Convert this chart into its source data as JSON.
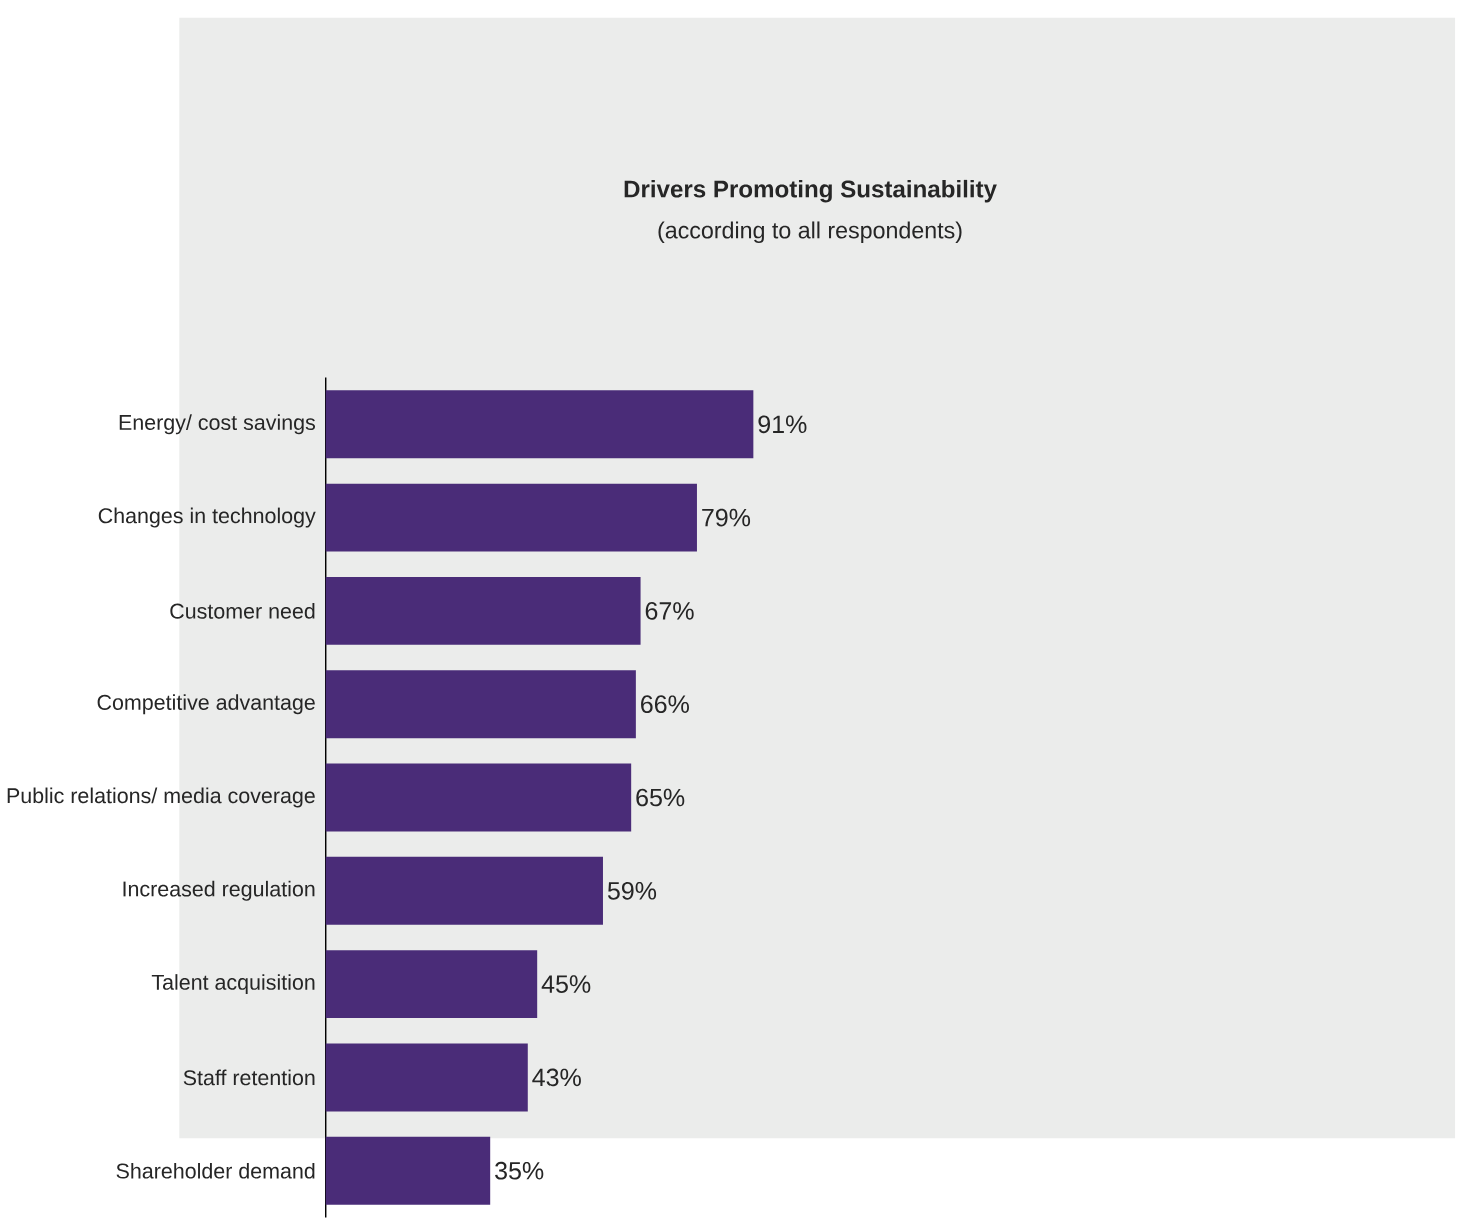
{
  "chart_data": {
    "type": "bar",
    "orientation": "horizontal",
    "title": "Drivers Promoting Sustainability",
    "subtitle": "(according to all respondents)",
    "categories": [
      "Energy/ cost savings",
      "Changes in technology",
      "Customer need",
      "Competitive advantage",
      "Public relations/ media coverage",
      "Increased regulation",
      "Talent acquisition",
      "Staff retention",
      "Shareholder demand"
    ],
    "values": [
      91,
      79,
      67,
      66,
      65,
      59,
      45,
      43,
      35
    ],
    "value_labels": [
      "91%",
      "79%",
      "67%",
      "66%",
      "65%",
      "59%",
      "45%",
      "43%",
      "35%"
    ],
    "color": "#4a2c78"
  }
}
